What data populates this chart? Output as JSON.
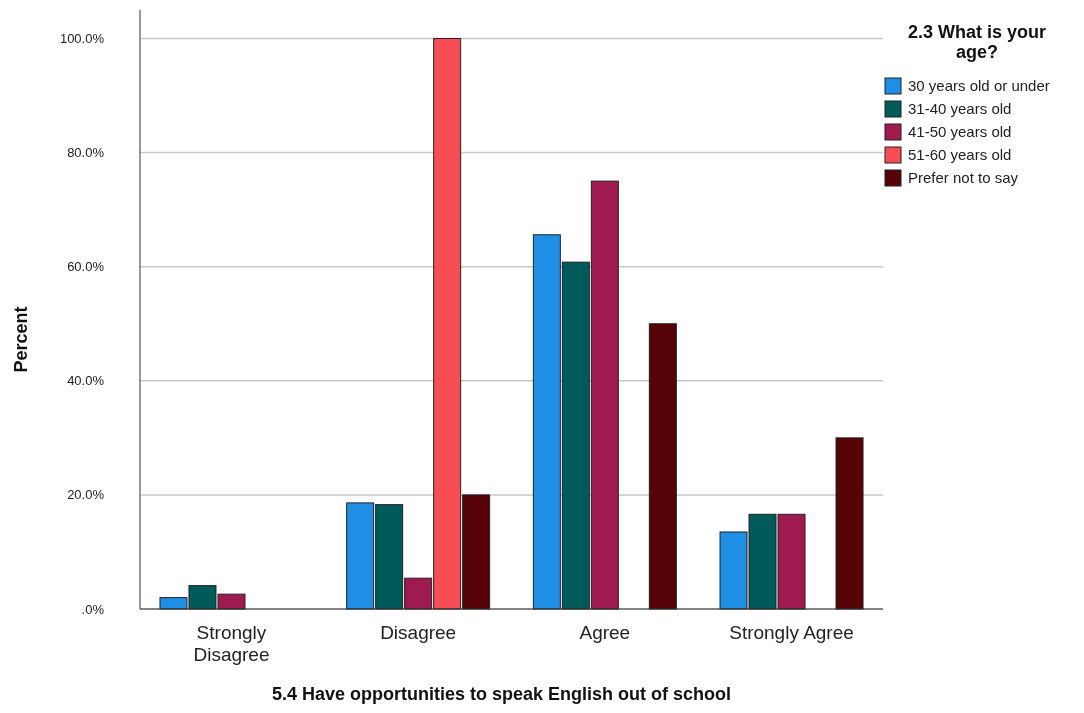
{
  "chart_data": {
    "type": "bar",
    "xlabel": "5.4 Have opportunities to speak English out of school",
    "ylabel": "Percent",
    "legend_title": "2.3 What is your age?",
    "categories": [
      "Strongly Disagree",
      "Disagree",
      "Agree",
      "Strongly Agree"
    ],
    "series": [
      {
        "name": "30 years old or under",
        "color": "#1f8fe5",
        "values": [
          2.0,
          18.6,
          65.6,
          13.5
        ]
      },
      {
        "name": "31-40 years old",
        "color": "#005a5a",
        "values": [
          4.1,
          18.3,
          60.8,
          16.6
        ]
      },
      {
        "name": "41-50 years old",
        "color": "#9e1a4f",
        "values": [
          2.6,
          5.4,
          75.0,
          16.6
        ]
      },
      {
        "name": "51-60 years old",
        "color": "#f94d55",
        "values": [
          0,
          100,
          0,
          0
        ]
      },
      {
        "name": "Prefer not to say",
        "color": "#560308",
        "values": [
          0,
          20,
          50,
          30
        ]
      }
    ],
    "ylim": [
      0,
      105
    ],
    "yticks": [
      {
        "value": 0,
        "label": ".0%"
      },
      {
        "value": 20,
        "label": "20.0%"
      },
      {
        "value": 40,
        "label": "40.0%"
      },
      {
        "value": 60,
        "label": "60.0%"
      },
      {
        "value": 80,
        "label": "80.0%"
      },
      {
        "value": 100,
        "label": "100.0%"
      }
    ],
    "grid": "y",
    "legend": "right"
  }
}
